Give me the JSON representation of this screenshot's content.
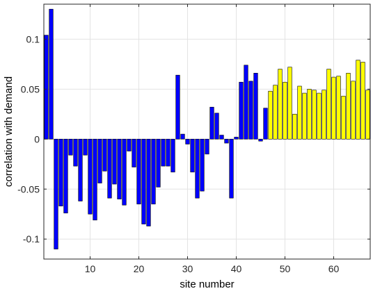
{
  "chart_data": {
    "type": "bar",
    "title": "",
    "xlabel": "site number",
    "ylabel": "correlation with demand",
    "xlim": [
      0.5,
      67.5
    ],
    "ylim": [
      -0.12,
      0.135
    ],
    "grid": true,
    "x_ticks": [
      10,
      20,
      30,
      40,
      50,
      60
    ],
    "x_tick_labels": [
      "10",
      "20",
      "30",
      "40",
      "50",
      "60"
    ],
    "y_ticks": [
      -0.1,
      -0.05,
      0,
      0.05,
      0.1
    ],
    "y_tick_labels": [
      "-0.1",
      "-0.05",
      "0",
      "0.05",
      "0.1"
    ],
    "x": [
      1,
      2,
      3,
      4,
      5,
      6,
      7,
      8,
      9,
      10,
      11,
      12,
      13,
      14,
      15,
      16,
      17,
      18,
      19,
      20,
      21,
      22,
      23,
      24,
      25,
      26,
      27,
      28,
      29,
      30,
      31,
      32,
      33,
      34,
      35,
      36,
      37,
      38,
      39,
      40,
      41,
      42,
      43,
      44,
      45,
      46,
      47,
      48,
      49,
      50,
      51,
      52,
      53,
      54,
      55,
      56,
      57,
      58,
      59,
      60,
      61,
      62,
      63,
      64,
      65,
      66,
      67
    ],
    "series": [
      {
        "color": "#0000ff",
        "x": [
          1,
          2,
          3,
          4,
          5,
          6,
          7,
          8,
          9,
          10,
          11,
          12,
          13,
          14,
          15,
          16,
          17,
          18,
          19,
          20,
          21,
          22,
          23,
          24,
          25,
          26,
          27,
          28,
          29,
          30,
          31,
          32,
          33,
          34,
          35,
          36,
          37,
          38,
          39,
          40,
          41,
          42,
          43,
          44,
          45,
          46
        ],
        "values": [
          0.104,
          0.13,
          -0.11,
          -0.067,
          -0.074,
          -0.016,
          -0.027,
          -0.062,
          -0.016,
          -0.075,
          -0.081,
          -0.044,
          -0.032,
          -0.059,
          -0.045,
          -0.06,
          -0.066,
          -0.012,
          -0.028,
          -0.065,
          -0.085,
          -0.087,
          -0.065,
          -0.048,
          -0.027,
          -0.027,
          -0.033,
          0.064,
          0.005,
          -0.005,
          -0.033,
          -0.059,
          -0.052,
          -0.015,
          0.032,
          0.026,
          0.004,
          -0.004,
          -0.059,
          0.002,
          0.057,
          0.074,
          0.058,
          0.066,
          -0.002,
          0.031
        ]
      },
      {
        "color": "#ffff00",
        "x": [
          47,
          48,
          49,
          50,
          51,
          52,
          53,
          54,
          55,
          56,
          57,
          58,
          59,
          60,
          61,
          62,
          63,
          64,
          65,
          66,
          67
        ],
        "values": [
          0.048,
          0.054,
          0.07,
          0.057,
          0.072,
          0.025,
          0.053,
          0.046,
          0.05,
          0.049,
          0.046,
          0.049,
          0.07,
          0.062,
          0.063,
          0.043,
          0.066,
          0.058,
          0.079,
          0.077,
          0.049
        ]
      }
    ]
  }
}
